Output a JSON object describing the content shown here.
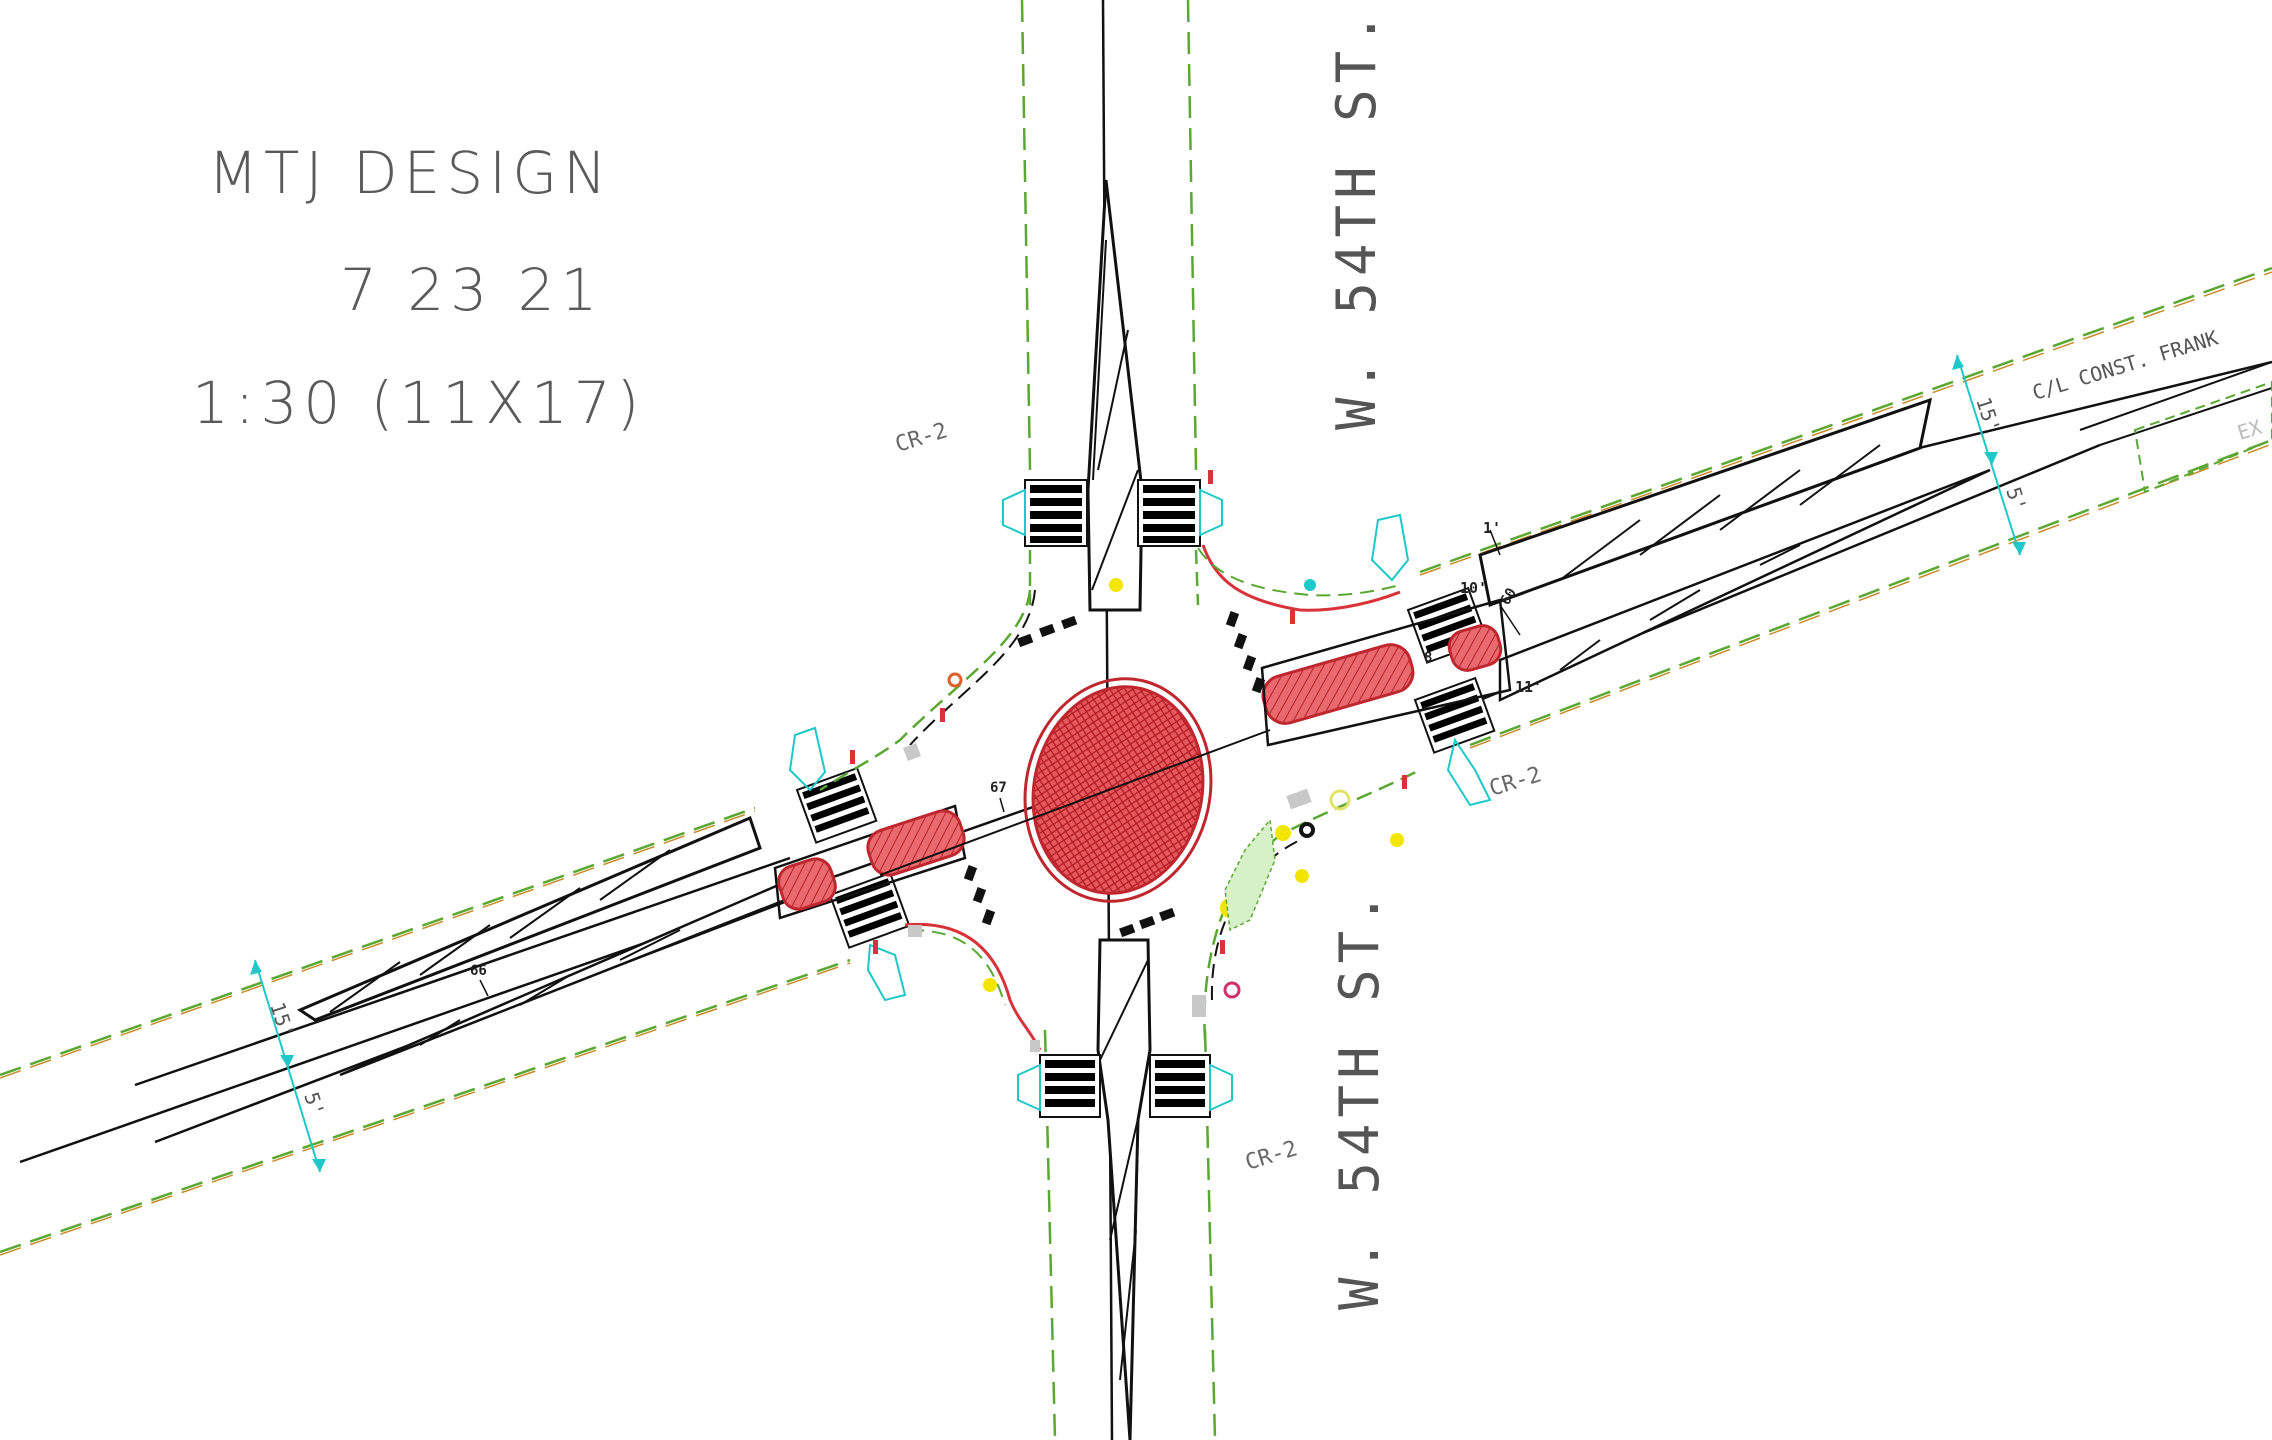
{
  "title_block": {
    "company": "MTJ DESIGN",
    "date": "7 23 21",
    "scale": "1:30 (11X17)"
  },
  "street_labels": {
    "north": "W. 54TH ST.",
    "south": "W. 54TH ST.",
    "east_const": "C/L CONST. FRANK",
    "east_ex": "EX"
  },
  "curb_ramp_labels": {
    "nw": "CR-2",
    "ne": "CR-2",
    "se": "CR-2"
  },
  "dimension_labels": {
    "east_top_15": "15'",
    "east_top_5": "5'",
    "west_bottom_15": "15'",
    "west_bottom_5": "5'",
    "east_1": "1'",
    "east_10": "10'",
    "east_11": "11'",
    "east_8": "8",
    "east_60": "60",
    "center_67": "67",
    "west_66": "66"
  },
  "colors": {
    "pavement_line": "#111111",
    "edge_dash_green": "#5aa832",
    "edge_dash_orange": "#c98a2a",
    "island_red": "#d9333a",
    "ramp_cyan": "#1ec8c8",
    "crosswalk_black": "#000000",
    "sign_yellow": "#f2e600"
  }
}
